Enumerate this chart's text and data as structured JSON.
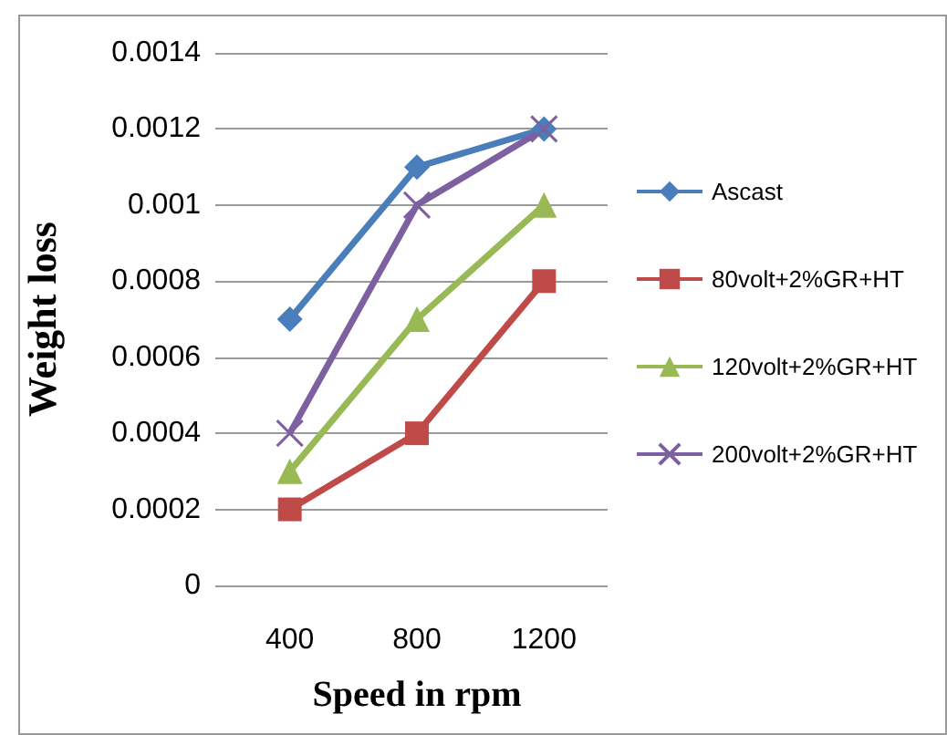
{
  "chart_data": {
    "type": "line",
    "xlabel": "Speed in rpm",
    "ylabel": "Weight loss",
    "categories": [
      "400",
      "800",
      "1200"
    ],
    "series": [
      {
        "name": "Ascast",
        "color": "#4a7ebb",
        "marker": "diamond",
        "values": [
          0.0007,
          0.0011,
          0.0012
        ]
      },
      {
        "name": "80volt+2%GR+HT",
        "color": "#be4b48",
        "marker": "square",
        "values": [
          0.0002,
          0.0004,
          0.0008
        ]
      },
      {
        "name": "120volt+2%GR+HT",
        "color": "#98b954",
        "marker": "triangle",
        "values": [
          0.0003,
          0.0007,
          0.001
        ]
      },
      {
        "name": "200volt+2%GR+HT",
        "color": "#7d60a0",
        "marker": "cross",
        "values": [
          0.0004,
          0.001,
          0.0012
        ]
      }
    ],
    "ylim": [
      0,
      0.0014
    ],
    "yticks": [
      0,
      0.0002,
      0.0004,
      0.0006,
      0.0008,
      0.001,
      0.0012,
      0.0014
    ],
    "grid": "y",
    "legend": "right"
  }
}
